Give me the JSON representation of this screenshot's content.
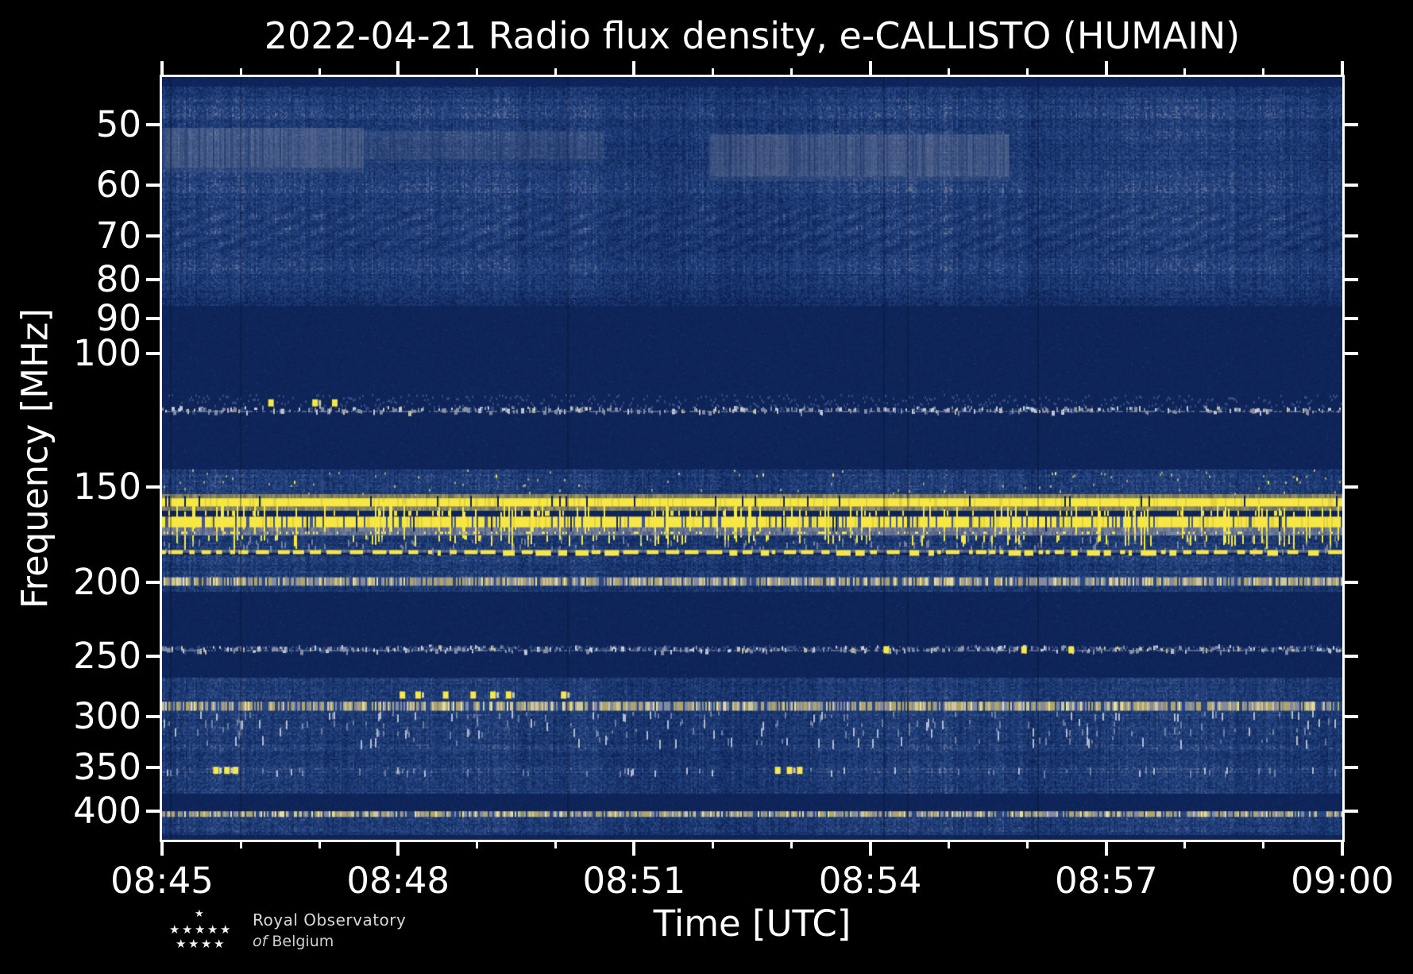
{
  "title": "2022-04-21 Radio flux density, e-CALLISTO (HUMAIN)",
  "xlabel": "Time [UTC]",
  "ylabel": "Frequency [MHz]",
  "logo": {
    "line1": "Royal Observatory",
    "line2_italic": "of",
    "line2_rest": " Belgium",
    "star_rows": [
      1,
      5,
      4
    ]
  },
  "chart_data": {
    "type": "heatmap",
    "subtype": "radio-spectrogram",
    "title": "2022-04-21 Radio flux density, e-CALLISTO (HUMAIN)",
    "xlabel": "Time [UTC]",
    "ylabel": "Frequency [MHz]",
    "x_ticks_major": [
      "08:45",
      "08:48",
      "08:51",
      "08:54",
      "08:57",
      "09:00"
    ],
    "x_range_minutes": [
      0,
      15
    ],
    "x_minor_every_min": 1,
    "x_major_every_min": 3,
    "y_scale": "log",
    "y_ticks": [
      50,
      60,
      70,
      80,
      90,
      100,
      150,
      200,
      250,
      300,
      350,
      400
    ],
    "f_range": [
      43.3,
      436
    ],
    "grid": false,
    "legend": false,
    "colors": {
      "background": "#000000",
      "palette": [
        {
          "v": 0.0,
          "c": "#0c2154"
        },
        {
          "v": 0.35,
          "c": "#1c3a74"
        },
        {
          "v": 0.55,
          "c": "#2c4a84"
        },
        {
          "v": 0.72,
          "c": "#5a6890"
        },
        {
          "v": 0.88,
          "c": "#8e96aa"
        },
        {
          "v": 1.0,
          "c": "#ced2de"
        }
      ],
      "yellow": "#f6e743",
      "yellow_dim": "#e3d23a",
      "khaki": "#b7ab6e",
      "gray": "#8e96aa",
      "light": "#ced2de",
      "pale": "#d8d0a2",
      "blue_mid": "#2c4a84",
      "patch": "#76819c"
    },
    "bands": [
      {
        "f": [
          43.3,
          44.5
        ],
        "style": "dark"
      },
      {
        "f": [
          44.5,
          46
        ],
        "style": "texture",
        "b": 0.42
      },
      {
        "f": [
          46,
          47.5
        ],
        "style": "texture",
        "b": 0.52
      },
      {
        "f": [
          47.5,
          49
        ],
        "style": "texture",
        "b": 0.6
      },
      {
        "f": [
          49,
          51
        ],
        "style": "texture",
        "b": 0.48
      },
      {
        "f": [
          51,
          53
        ],
        "style": "texture",
        "b": 0.53
      },
      {
        "f": [
          53,
          55.5
        ],
        "style": "texture",
        "b": 0.48
      },
      {
        "f": [
          55.5,
          57.5
        ],
        "style": "texture",
        "b": 0.44
      },
      {
        "f": [
          57.5,
          59.5
        ],
        "style": "texture",
        "b": 0.52
      },
      {
        "f": [
          59.5,
          61.5
        ],
        "style": "texture",
        "b": 0.58
      },
      {
        "f": [
          61.5,
          64
        ],
        "style": "texture",
        "b": 0.47
      },
      {
        "f": [
          64,
          70
        ],
        "style": "texture",
        "b": 0.5,
        "herringbone": true
      },
      {
        "f": [
          70,
          74
        ],
        "style": "texture",
        "b": 0.44,
        "herringbone": true
      },
      {
        "f": [
          74,
          76
        ],
        "style": "texture",
        "b": 0.5
      },
      {
        "f": [
          76,
          78.5
        ],
        "style": "texture",
        "b": 0.56
      },
      {
        "f": [
          78.5,
          81
        ],
        "style": "texture",
        "b": 0.47
      },
      {
        "f": [
          81,
          84.5
        ],
        "style": "texture",
        "b": 0.4
      },
      {
        "f": [
          84.5,
          86.5
        ],
        "style": "texture",
        "b": 0.28
      },
      {
        "f": [
          86.5,
          113
        ],
        "style": "dark"
      },
      {
        "f": [
          113,
          124
        ],
        "style": "speckle"
      },
      {
        "f": [
          124,
          142
        ],
        "style": "dark"
      },
      {
        "f": [
          142,
          153
        ],
        "style": "texture",
        "b": 0.5,
        "tanspeck": true
      },
      {
        "f": [
          153,
          155
        ],
        "style": "halo"
      },
      {
        "f": [
          155,
          159
        ],
        "style": "rfi_solid"
      },
      {
        "f": [
          159,
          161
        ],
        "style": "halo"
      },
      {
        "f": [
          161,
          163.5
        ],
        "style": "streaks"
      },
      {
        "f": [
          163.5,
          171.5
        ],
        "style": "rfi_barcode"
      },
      {
        "f": [
          171.5,
          173.5
        ],
        "style": "grayrow"
      },
      {
        "f": [
          173.5,
          181
        ],
        "style": "spikezone",
        "b": 0.45
      },
      {
        "f": [
          181,
          184
        ],
        "style": "rfi_dashed"
      },
      {
        "f": [
          184,
          188
        ],
        "style": "texture",
        "b": 0.5
      },
      {
        "f": [
          188,
          193
        ],
        "style": "texture",
        "b": 0.42
      },
      {
        "f": [
          193,
          197
        ],
        "style": "texture",
        "b": 0.5
      },
      {
        "f": [
          197,
          202
        ],
        "style": "tan"
      },
      {
        "f": [
          202,
          205.5
        ],
        "style": "texture",
        "b": 0.45
      },
      {
        "f": [
          205.5,
          242
        ],
        "style": "dark"
      },
      {
        "f": [
          242,
          248
        ],
        "style": "speckle"
      },
      {
        "f": [
          248,
          267
        ],
        "style": "dark"
      },
      {
        "f": [
          267,
          272
        ],
        "style": "texture",
        "b": 0.5
      },
      {
        "f": [
          272,
          278
        ],
        "style": "texture",
        "b": 0.43
      },
      {
        "f": [
          278,
          284
        ],
        "style": "texture",
        "b": 0.5
      },
      {
        "f": [
          284,
          287
        ],
        "style": "texture",
        "b": 0.42
      },
      {
        "f": [
          287,
          295
        ],
        "style": "tan"
      },
      {
        "f": [
          295,
          302
        ],
        "style": "texture",
        "b": 0.5,
        "wstreaks": true
      },
      {
        "f": [
          302,
          310
        ],
        "style": "texture",
        "b": 0.45,
        "wstreaks": true
      },
      {
        "f": [
          310,
          318
        ],
        "style": "texture",
        "b": 0.5,
        "wstreaks": true
      },
      {
        "f": [
          318,
          327
        ],
        "style": "texture",
        "b": 0.46,
        "wstreaks": true
      },
      {
        "f": [
          327,
          333
        ],
        "style": "texture",
        "b": 0.56
      },
      {
        "f": [
          333,
          343
        ],
        "style": "texture",
        "b": 0.45
      },
      {
        "f": [
          343,
          350
        ],
        "style": "texture",
        "b": 0.5
      },
      {
        "f": [
          350,
          357
        ],
        "style": "texture",
        "b": 0.58,
        "wstreaks": true
      },
      {
        "f": [
          357,
          364
        ],
        "style": "texture",
        "b": 0.47
      },
      {
        "f": [
          364,
          372
        ],
        "style": "texture",
        "b": 0.44
      },
      {
        "f": [
          372,
          380
        ],
        "style": "texture",
        "b": 0.5
      },
      {
        "f": [
          380,
          400
        ],
        "style": "dark"
      },
      {
        "f": [
          400,
          407
        ],
        "style": "tan"
      },
      {
        "f": [
          407,
          413
        ],
        "style": "texture",
        "b": 0.5
      },
      {
        "f": [
          413,
          420
        ],
        "style": "texture",
        "b": 0.44
      },
      {
        "f": [
          420,
          426
        ],
        "style": "texture",
        "b": 0.54
      },
      {
        "f": [
          426,
          430.5
        ],
        "style": "texture",
        "b": 0.42
      },
      {
        "f": [
          430.5,
          436
        ],
        "style": "dark"
      }
    ],
    "patches": [
      {
        "t": [
          0,
          2.55
        ],
        "f": [
          50.5,
          57
        ],
        "a": 0.55
      },
      {
        "t": [
          2.55,
          5.6
        ],
        "f": [
          51,
          55.5
        ],
        "a": 0.3
      },
      {
        "t": [
          6.95,
          10.75
        ],
        "f": [
          51.5,
          58.5
        ],
        "a": 0.55
      }
    ],
    "dot_clusters": [
      {
        "f": 116,
        "t": [
          1.38,
          1.94,
          2.19
        ]
      },
      {
        "f": 281,
        "t": [
          3.05,
          3.25,
          3.6,
          3.95,
          4.2,
          4.4,
          5.1
        ]
      },
      {
        "f": 353,
        "t": [
          0.68,
          0.82,
          0.93,
          7.82,
          7.97,
          8.1
        ]
      },
      {
        "f": 245,
        "t": [
          9.2,
          10.95,
          11.55
        ]
      }
    ]
  }
}
